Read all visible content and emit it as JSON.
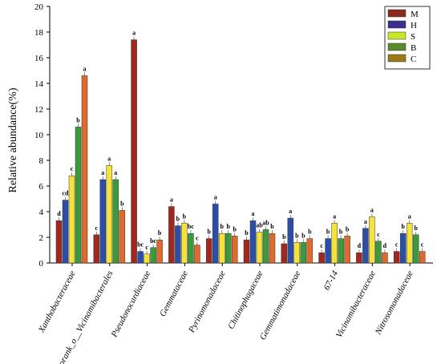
{
  "chart_data": {
    "type": "bar",
    "ylabel": "Relative abundance(%)",
    "ylim": [
      0,
      20
    ],
    "yticks": [
      0,
      2,
      4,
      6,
      8,
      10,
      12,
      14,
      16,
      18,
      20
    ],
    "categories": [
      "Xanthobacteraceae",
      "norank_o__Vicinamibacterales",
      "Pseudonocardiaceae",
      "Gemmataceae",
      "Pyrinomonadaceae",
      "Chitinophagaceae",
      "Gemmatimonadaceae",
      "67-14",
      "Vicinamibacteraceae",
      "Nitrosomonadaceae"
    ],
    "series": [
      {
        "name": "M",
        "color": "#a0281e",
        "values": [
          3.3,
          2.2,
          17.4,
          4.4,
          1.9,
          1.8,
          1.5,
          0.8,
          0.8,
          0.9
        ],
        "labels": [
          "d",
          "c",
          "a",
          "a",
          "b",
          "b",
          "b",
          "c",
          "d",
          "c"
        ]
      },
      {
        "name": "H",
        "color": "#2b4fa8",
        "values": [
          4.9,
          6.5,
          0.9,
          2.9,
          4.6,
          3.3,
          3.5,
          1.9,
          2.7,
          2.3
        ],
        "labels": [
          "cd",
          "a",
          "bc",
          "b",
          "a",
          "a",
          "a",
          "b",
          "a",
          "b"
        ]
      },
      {
        "name": "S",
        "color": "#f5e23a",
        "values": [
          6.8,
          7.6,
          0.7,
          3.1,
          2.3,
          2.4,
          1.6,
          3.1,
          3.6,
          3.1
        ],
        "labels": [
          "c",
          "a",
          "c",
          "b",
          "b",
          "ab",
          "b",
          "a",
          "a",
          "a"
        ]
      },
      {
        "name": "B",
        "color": "#3d9a3c",
        "values": [
          10.6,
          6.5,
          1.2,
          2.3,
          2.3,
          2.6,
          1.6,
          1.9,
          1.7,
          2.2
        ],
        "labels": [
          "b",
          "a",
          "bc",
          "bc",
          "b",
          "ab",
          "b",
          "b",
          "c",
          "b"
        ]
      },
      {
        "name": "C",
        "color": "#e06a2e",
        "values": [
          14.6,
          4.1,
          1.8,
          1.4,
          2.1,
          2.3,
          1.9,
          2.1,
          0.8,
          0.9
        ],
        "labels": [
          "a",
          "b",
          "b",
          "c",
          "b",
          "b",
          "b",
          "b",
          "d",
          "c"
        ]
      }
    ],
    "legend_position": "top-right",
    "legend_colors": {
      "M": "#8b2b1e",
      "H": "#3a2f8f",
      "S": "#c8e62a",
      "B": "#5a8a2b",
      "C": "#9a7a18"
    }
  }
}
